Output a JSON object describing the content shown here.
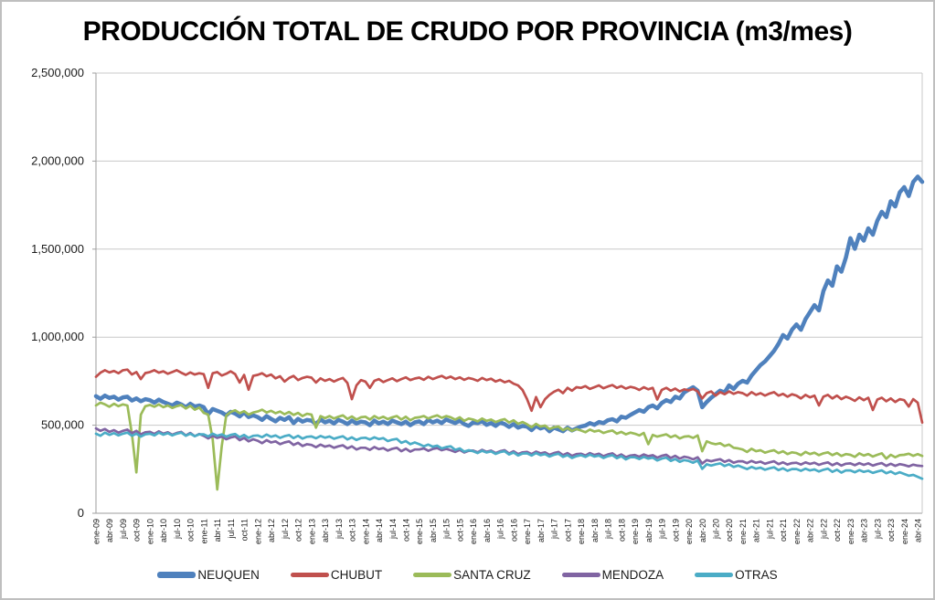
{
  "window": {
    "background": "#ffffff",
    "frame_border_color": "#bfbfbf"
  },
  "chart_data": {
    "type": "line",
    "title": "PRODUCCIÓN TOTAL DE CRUDO POR PROVINCIA (m3/mes)",
    "grid": true,
    "legend_position": "bottom",
    "gridline_color": "#c8c8c8",
    "axis_line_color": "#9e9e9e",
    "y_axis": {
      "min": 0,
      "max": 2500000,
      "step": 500000,
      "tick_labels": [
        "0",
        "500,000",
        "1,000,000",
        "1,500,000",
        "2,000,000",
        "2,500,000"
      ]
    },
    "x_axis": {
      "frequency": "monthly",
      "first_month": "ene-09",
      "last_month": "may-24",
      "labels_every_n_months": 3,
      "tick_labels": [
        "ene-09",
        "abr-09",
        "jul-09",
        "oct-09",
        "ene-10",
        "abr-10",
        "jul-10",
        "oct-10",
        "ene-11",
        "abr-11",
        "jul-11",
        "oct-11",
        "ene-12",
        "abr-12",
        "jul-12",
        "oct-12",
        "ene-13",
        "abr-13",
        "jul-13",
        "oct-13",
        "ene-14",
        "abr-14",
        "jul-14",
        "oct-14",
        "ene-15",
        "abr-15",
        "jul-15",
        "oct-15",
        "ene-16",
        "abr-16",
        "jul-16",
        "oct-16",
        "ene-17",
        "abr-17",
        "jul-17",
        "oct-17",
        "ene-18",
        "abr-18",
        "jul-18",
        "oct-18",
        "ene-19",
        "abr-19",
        "jul-19",
        "oct-19",
        "ene-20",
        "abr-20",
        "jul-20",
        "oct-20",
        "ene-21",
        "abr-21",
        "jul-21",
        "oct-21",
        "ene-22",
        "abr-22",
        "jul-22",
        "oct-22",
        "ene-23",
        "abr-23",
        "jul-23",
        "oct-23",
        "ene-24",
        "abr-24"
      ]
    },
    "values_unit": "m3/mes",
    "values_scale": 1000,
    "series": [
      {
        "name": "NEUQUEN",
        "color": "#4F81BD",
        "line_width": 4.5,
        "values": [
          665,
          650,
          668,
          655,
          662,
          645,
          658,
          662,
          640,
          652,
          636,
          648,
          642,
          628,
          645,
          632,
          622,
          612,
          628,
          618,
          602,
          622,
          606,
          612,
          602,
          562,
          592,
          582,
          572,
          556,
          576,
          566,
          550,
          572,
          546,
          556,
          546,
          530,
          552,
          536,
          522,
          542,
          530,
          546,
          512,
          536,
          520,
          530,
          526,
          506,
          532,
          516,
          526,
          510,
          530,
          520,
          506,
          526,
          510,
          520,
          516,
          500,
          526,
          510,
          520,
          506,
          526,
          516,
          506,
          520,
          500,
          516,
          522,
          506,
          530,
          516,
          526,
          512,
          532,
          522,
          512,
          526,
          506,
          496,
          516,
          512,
          522,
          502,
          512,
          496,
          516,
          506,
          490,
          506,
          486,
          496,
          492,
          472,
          496,
          482,
          490,
          466,
          486,
          476,
          466,
          486,
          470,
          482,
          492,
          498,
          512,
          502,
          518,
          512,
          528,
          534,
          522,
          548,
          542,
          558,
          572,
          586,
          576,
          602,
          612,
          596,
          626,
          642,
          632,
          662,
          652,
          686,
          702,
          716,
          696,
          602,
          632,
          656,
          676,
          696,
          686,
          726,
          706,
          736,
          752,
          742,
          782,
          812,
          842,
          862,
          892,
          922,
          962,
          1012,
          992,
          1042,
          1072,
          1042,
          1102,
          1142,
          1182,
          1152,
          1262,
          1322,
          1292,
          1402,
          1372,
          1452,
          1562,
          1502,
          1582,
          1548,
          1618,
          1582,
          1662,
          1712,
          1682,
          1772,
          1742,
          1822,
          1852,
          1802,
          1882,
          1912,
          1882
        ]
      },
      {
        "name": "CHUBUT",
        "color": "#C0504D",
        "line_width": 2.7,
        "values": [
          775,
          798,
          812,
          800,
          808,
          795,
          812,
          816,
          788,
          802,
          762,
          796,
          802,
          812,
          798,
          806,
          792,
          802,
          812,
          798,
          786,
          800,
          788,
          795,
          790,
          712,
          795,
          802,
          782,
          792,
          806,
          790,
          742,
          786,
          702,
          780,
          786,
          795,
          778,
          788,
          766,
          778,
          748,
          768,
          780,
          756,
          768,
          775,
          770,
          742,
          766,
          752,
          762,
          748,
          760,
          768,
          740,
          648,
          726,
          756,
          748,
          712,
          752,
          762,
          745,
          756,
          766,
          750,
          762,
          772,
          756,
          765,
          770,
          758,
          775,
          762,
          772,
          780,
          766,
          776,
          762,
          772,
          758,
          768,
          762,
          752,
          768,
          756,
          764,
          748,
          758,
          744,
          752,
          736,
          726,
          700,
          648,
          582,
          660,
          602,
          648,
          672,
          690,
          702,
          682,
          712,
          696,
          716,
          712,
          722,
          706,
          716,
          726,
          710,
          720,
          728,
          712,
          722,
          708,
          718,
          712,
          700,
          716,
          704,
          712,
          646,
          700,
          712,
          696,
          708,
          692,
          704,
          698,
          706,
          692,
          652,
          682,
          692,
          668,
          688,
          676,
          692,
          678,
          688,
          682,
          668,
          688,
          672,
          682,
          668,
          680,
          688,
          668,
          678,
          662,
          676,
          668,
          652,
          672,
          658,
          668,
          612,
          662,
          672,
          652,
          668,
          648,
          662,
          652,
          638,
          658,
          642,
          656,
          586,
          646,
          656,
          636,
          652,
          632,
          648,
          642,
          606,
          648,
          628,
          515
        ]
      },
      {
        "name": "SANTA CRUZ",
        "color": "#9BBB59",
        "line_width": 2.7,
        "values": [
          612,
          628,
          618,
          605,
          622,
          608,
          618,
          612,
          452,
          232,
          560,
          608,
          615,
          605,
          618,
          602,
          612,
          598,
          608,
          615,
          595,
          610,
          588,
          600,
          570,
          560,
          420,
          135,
          380,
          555,
          575,
          585,
          568,
          580,
          560,
          572,
          578,
          588,
          572,
          582,
          568,
          578,
          562,
          575,
          558,
          570,
          552,
          565,
          560,
          486,
          552,
          540,
          552,
          538,
          548,
          556,
          536,
          550,
          532,
          545,
          548,
          532,
          552,
          538,
          548,
          535,
          545,
          552,
          532,
          548,
          528,
          542,
          545,
          552,
          538,
          548,
          556,
          542,
          552,
          545,
          532,
          545,
          525,
          538,
          532,
          522,
          538,
          525,
          532,
          518,
          528,
          535,
          515,
          528,
          508,
          518,
          505,
          488,
          508,
          492,
          498,
          478,
          488,
          492,
          472,
          484,
          468,
          478,
          470,
          460,
          475,
          464,
          470,
          456,
          464,
          470,
          452,
          462,
          448,
          458,
          452,
          442,
          456,
          392,
          445,
          435,
          442,
          448,
          432,
          442,
          425,
          435,
          438,
          428,
          442,
          352,
          408,
          398,
          392,
          398,
          382,
          390,
          372,
          368,
          362,
          348,
          366,
          352,
          358,
          344,
          352,
          358,
          342,
          352,
          336,
          346,
          342,
          330,
          348,
          336,
          344,
          330,
          340,
          346,
          330,
          342,
          325,
          336,
          332,
          320,
          340,
          328,
          336,
          322,
          332,
          340,
          310,
          332,
          318,
          330,
          332,
          338,
          326,
          336,
          325
        ]
      },
      {
        "name": "MENDOZA",
        "color": "#8064A2",
        "line_width": 2.7,
        "values": [
          482,
          468,
          478,
          462,
          472,
          458,
          468,
          475,
          455,
          468,
          448,
          460,
          462,
          450,
          465,
          452,
          460,
          446,
          456,
          462,
          442,
          456,
          438,
          450,
          440,
          425,
          440,
          428,
          435,
          420,
          430,
          436,
          415,
          428,
          408,
          420,
          412,
          398,
          415,
          402,
          408,
          392,
          402,
          408,
          388,
          400,
          382,
          392,
          388,
          375,
          390,
          378,
          385,
          372,
          380,
          386,
          368,
          380,
          362,
          372,
          372,
          360,
          376,
          364,
          370,
          356,
          366,
          372,
          352,
          366,
          350,
          362,
          362,
          368,
          355,
          365,
          370,
          358,
          365,
          358,
          348,
          360,
          345,
          355,
          356,
          346,
          360,
          349,
          356,
          342,
          352,
          358,
          339,
          352,
          336,
          346,
          348,
          336,
          350,
          340,
          346,
          332,
          342,
          348,
          330,
          342,
          326,
          336,
          338,
          328,
          342,
          331,
          338,
          324,
          334,
          340,
          322,
          334,
          318,
          328,
          331,
          321,
          334,
          324,
          330,
          316,
          326,
          332,
          314,
          326,
          310,
          321,
          316,
          306,
          318,
          282,
          302,
          295,
          302,
          307,
          292,
          302,
          287,
          295,
          295,
          285,
          297,
          287,
          293,
          281,
          289,
          295,
          279,
          289,
          277,
          285,
          287,
          277,
          289,
          280,
          287,
          275,
          283,
          289,
          273,
          285,
          271,
          281,
          283,
          273,
          285,
          275,
          283,
          271,
          279,
          285,
          269,
          281,
          269,
          279,
          274,
          266,
          276,
          270,
          268
        ]
      },
      {
        "name": "OTRAS",
        "color": "#4BACC6",
        "line_width": 2.7,
        "values": [
          452,
          440,
          458,
          445,
          455,
          442,
          452,
          458,
          440,
          452,
          435,
          448,
          452,
          442,
          458,
          446,
          455,
          442,
          452,
          458,
          440,
          452,
          438,
          448,
          448,
          436,
          452,
          440,
          448,
          435,
          445,
          450,
          432,
          445,
          428,
          440,
          442,
          432,
          447,
          434,
          442,
          428,
          438,
          444,
          427,
          440,
          424,
          434,
          436,
          426,
          439,
          429,
          436,
          423,
          431,
          437,
          419,
          431,
          416,
          427,
          429,
          419,
          431,
          421,
          427,
          410,
          418,
          422,
          400,
          410,
          392,
          402,
          392,
          380,
          390,
          378,
          384,
          368,
          376,
          380,
          360,
          368,
          350,
          358,
          352,
          342,
          355,
          345,
          351,
          337,
          347,
          352,
          334,
          345,
          328,
          339,
          340,
          328,
          342,
          330,
          336,
          322,
          332,
          338,
          320,
          330,
          314,
          324,
          330,
          320,
          333,
          322,
          328,
          314,
          324,
          330,
          312,
          324,
          306,
          318,
          318,
          308,
          320,
          310,
          316,
          300,
          310,
          316,
          297,
          308,
          292,
          302,
          297,
          287,
          300,
          252,
          278,
          271,
          278,
          283,
          268,
          278,
          263,
          271,
          261,
          251,
          263,
          253,
          259,
          247,
          255,
          261,
          245,
          255,
          241,
          251,
          251,
          241,
          253,
          243,
          249,
          237,
          247,
          253,
          235,
          247,
          231,
          243,
          243,
          233,
          245,
          235,
          241,
          229,
          237,
          243,
          227,
          237,
          223,
          233,
          223,
          213,
          218,
          207,
          196
        ]
      }
    ]
  }
}
